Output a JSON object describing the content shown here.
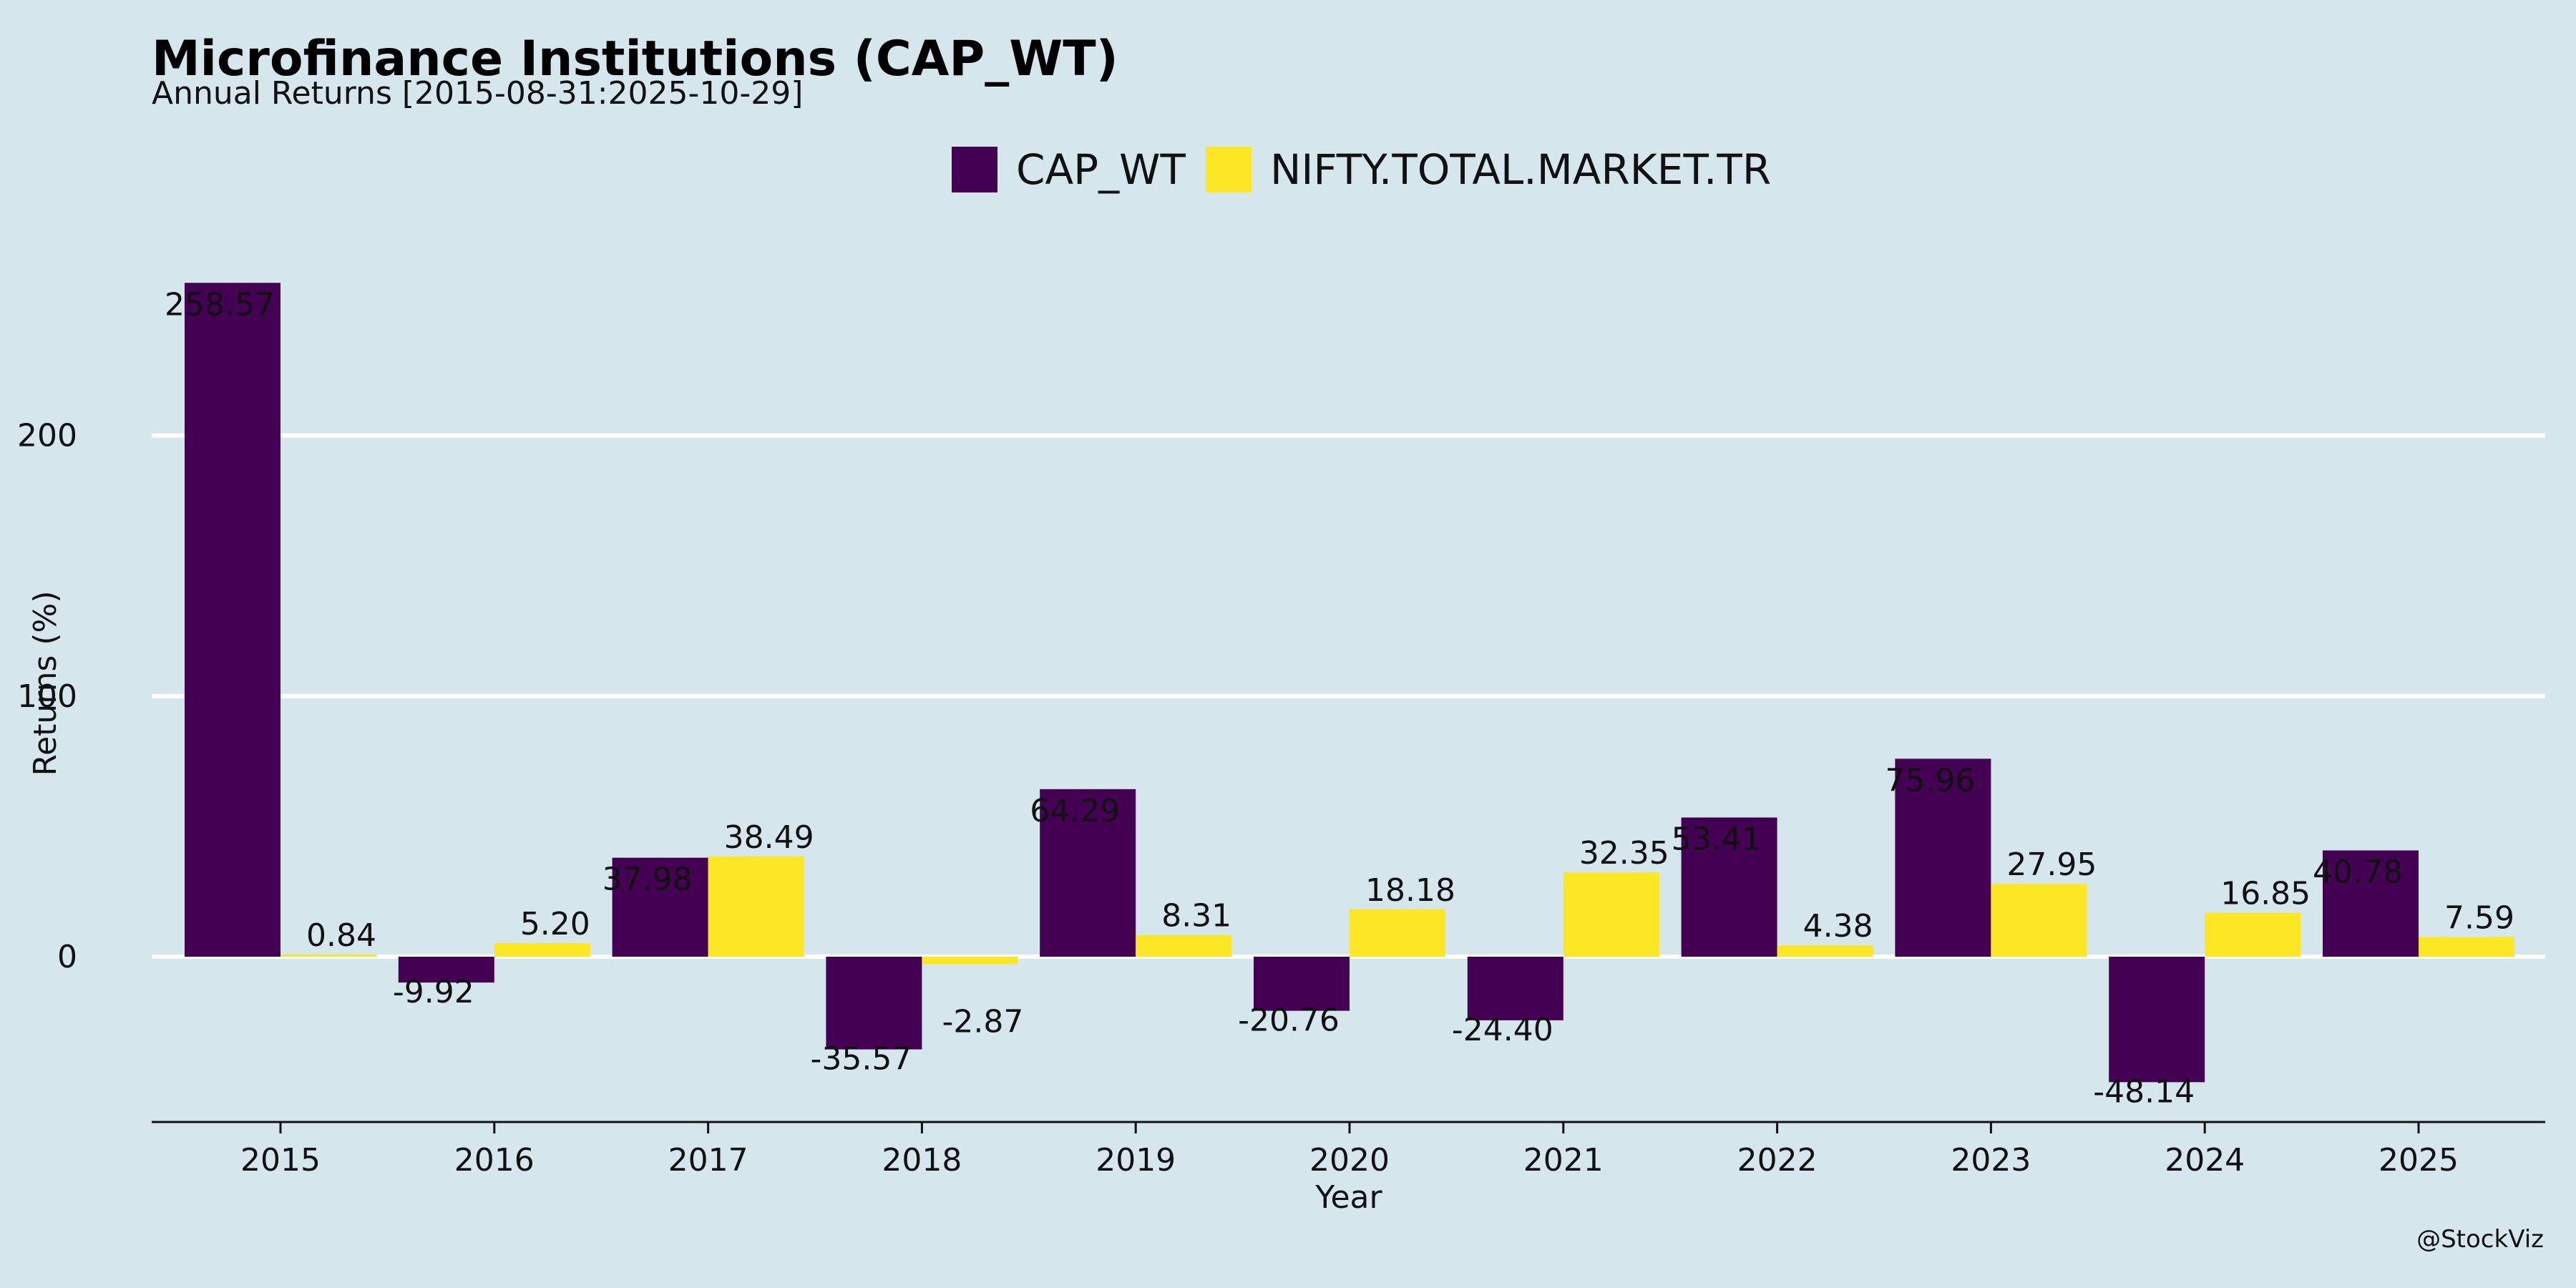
{
  "chart_data": {
    "type": "bar",
    "title": "Microfinance Institutions (CAP_WT)",
    "subtitle": "Annual Returns [2015-08-31:2025-10-29]",
    "xlabel": "Year",
    "ylabel": "Returns (%)",
    "categories": [
      "2015",
      "2016",
      "2017",
      "2018",
      "2019",
      "2020",
      "2021",
      "2022",
      "2023",
      "2024",
      "2025"
    ],
    "series": [
      {
        "name": "CAP_WT",
        "color": "#440154",
        "values": [
          258.57,
          -9.92,
          37.98,
          -35.57,
          64.29,
          -20.76,
          -24.4,
          53.41,
          75.96,
          -48.14,
          40.78
        ],
        "labels": [
          "258.57",
          "-9.92",
          "37.98",
          "-35.57",
          "64.29",
          "-20.76",
          "-24.40",
          "53.41",
          "75.96",
          "-48.14",
          "40.78"
        ]
      },
      {
        "name": "NIFTY.TOTAL.MARKET.TR",
        "color": "#fde725",
        "values": [
          0.84,
          5.2,
          38.49,
          -2.87,
          8.31,
          18.18,
          32.35,
          4.38,
          27.95,
          16.85,
          7.59
        ],
        "labels": [
          "0.84",
          "5.20",
          "38.49",
          "-2.87",
          "8.31",
          "18.18",
          "32.35",
          "4.38",
          "27.95",
          "16.85",
          "7.59"
        ]
      }
    ],
    "yticks": [
      0,
      100,
      200
    ],
    "ytick_labels": [
      "0",
      "100",
      "200"
    ],
    "ylim": [
      -63,
      275
    ],
    "grid": "horizontal",
    "legend_position": "top-center"
  },
  "credit": "@StockViz"
}
